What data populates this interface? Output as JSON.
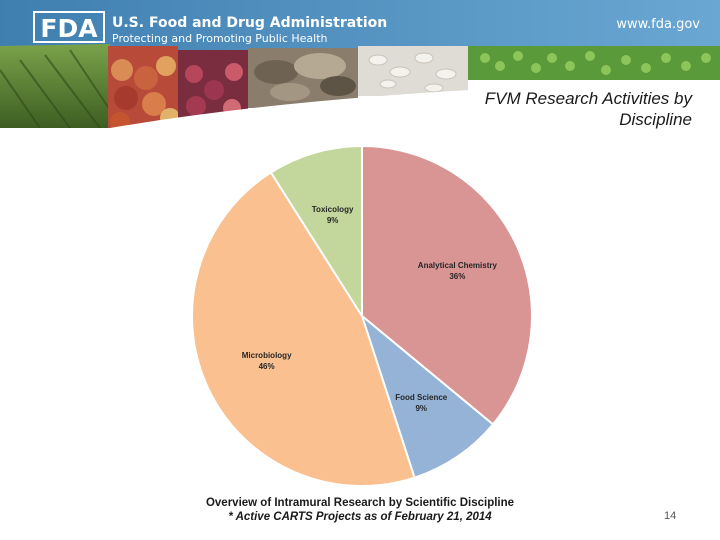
{
  "header": {
    "logo_text": "FDA",
    "agency": "U.S. Food and Drug Administration",
    "tagline": "Protecting and Promoting Public Health",
    "url": "www.fda.gov",
    "colors": {
      "banner": "#5b9bc9",
      "banner_dark": "#3f7fb0"
    }
  },
  "slide": {
    "title_line1": "FVM Research Activities by",
    "title_line2": "Discipline",
    "page_number": "14"
  },
  "caption": {
    "line1": "Overview of Intramural Research by Scientific Discipline",
    "line2": "* Active CARTS Projects as of February 21, 2014"
  },
  "chart_data": {
    "type": "pie",
    "slices": [
      {
        "label": "Analytical Chemistry",
        "value": 36,
        "value_label": "36%",
        "color": "#d99594"
      },
      {
        "label": "Food Science",
        "value": 9,
        "value_label": "9%",
        "color": "#95b3d7"
      },
      {
        "label": "Microbiology",
        "value": 46,
        "value_label": "46%",
        "color": "#fac090"
      },
      {
        "label": "Toxicology",
        "value": 9,
        "value_label": "9%",
        "color": "#c3d69b"
      }
    ]
  }
}
